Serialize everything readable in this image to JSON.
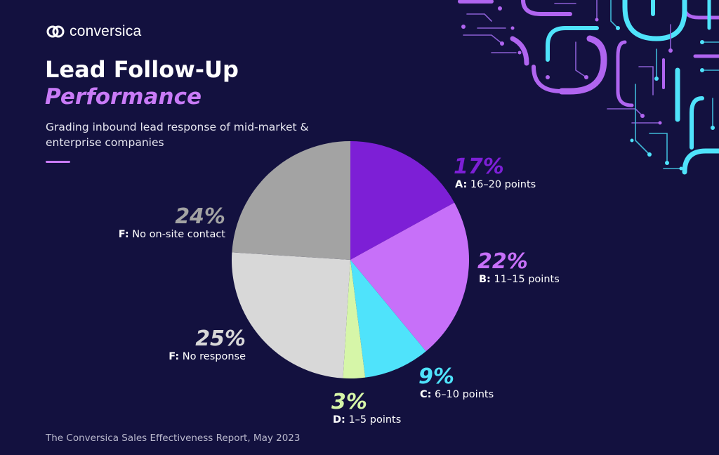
{
  "brand": {
    "name": "conversica"
  },
  "title_line1": "Lead Follow-Up",
  "title_line2": "Performance",
  "subtitle": "Grading inbound lead response of mid-market & enterprise companies",
  "footer": "The Conversica Sales Effectiveness Report, May 2023",
  "colors": {
    "background": "#13113f",
    "accent": "#c97bf7",
    "cyan": "#4fe3fb"
  },
  "chart_data": {
    "type": "pie",
    "title": "",
    "slices": [
      {
        "percent_label": "17%",
        "grade": "A:",
        "range": "16–20 points",
        "value": 17,
        "color": "#7d1fd6"
      },
      {
        "percent_label": "22%",
        "grade": "B:",
        "range": "11–15 points",
        "value": 22,
        "color": "#c770f9"
      },
      {
        "percent_label": "9%",
        "grade": "C:",
        "range": "6–10 points",
        "value": 9,
        "color": "#4fe3fb"
      },
      {
        "percent_label": "3%",
        "grade": "D:",
        "range": "1–5 points",
        "value": 3,
        "color": "#d6f6a8"
      },
      {
        "percent_label": "25%",
        "grade": "F:",
        "range": "No response",
        "value": 25,
        "color": "#d8d8d8"
      },
      {
        "percent_label": "24%",
        "grade": "F:",
        "range": "No on-site contact",
        "value": 24,
        "color": "#a3a3a3"
      }
    ]
  }
}
